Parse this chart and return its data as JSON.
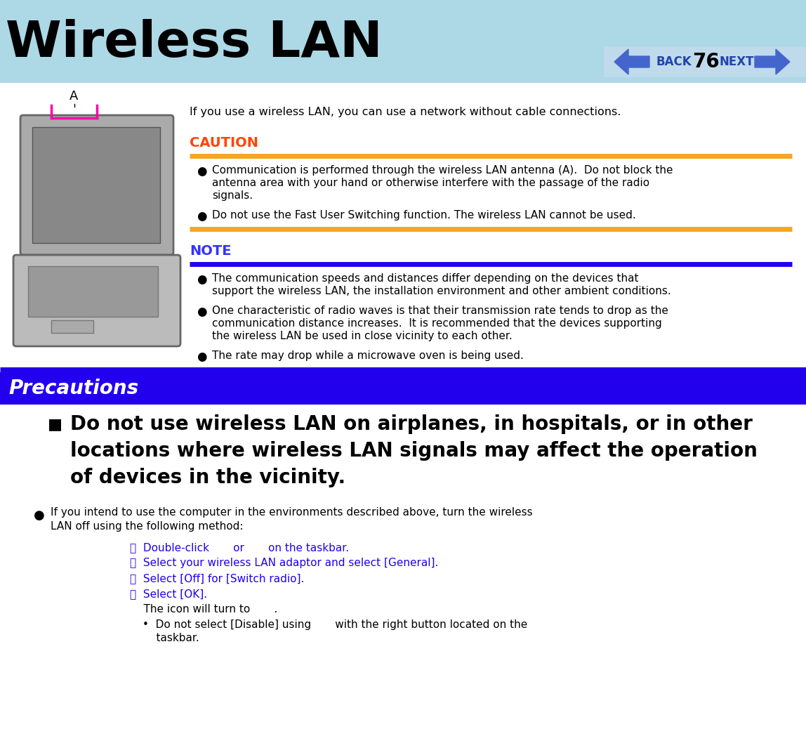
{
  "bg_color_top": "#ADD8E6",
  "bg_color_main": "#FFFFFF",
  "title": "Wireless LAN",
  "title_color": "#000000",
  "title_bg_color": "#ADD8E6",
  "page_num": "76",
  "caution_color": "#FF4500",
  "note_color": "#3333FF",
  "precautions_bg": "#2200EE",
  "precautions_text_color": "#FFFFFF",
  "orange_line_color": "#F5A623",
  "blue_line_color": "#2200EE",
  "body_text_color": "#000000",
  "intro_text": "If you use a wireless LAN, you can use a network without cable connections.",
  "caution_label": "CAUTION",
  "caution_bullets": [
    "Communication is performed through the wireless LAN antenna (A).  Do not block the\nantenna area with your hand or otherwise interfere with the passage of the radio\nsignals.",
    "Do not use the Fast User Switching function. The wireless LAN cannot be used."
  ],
  "note_label": "NOTE",
  "note_bullets": [
    "The communication speeds and distances differ depending on the devices that\nsupport the wireless LAN, the installation environment and other ambient conditions.",
    "One characteristic of radio waves is that their transmission rate tends to drop as the\ncommunication distance increases.  It is recommended that the devices supporting\nthe wireless LAN be used in close vicinity to each other.",
    "The rate may drop while a microwave oven is being used."
  ],
  "precautions_label": "Precautions",
  "precautions_main": "Do not use wireless LAN on airplanes, in hospitals, or in other\nlocations where wireless LAN signals may affect the operation\nof devices in the vicinity.",
  "precautions_sub1": "If you intend to use the computer in the environments described above, turn the wireless\nLAN off using the following method:",
  "steps": [
    "ⓐ  Double-click       or       on the taskbar.",
    "ⓑ  Select your wireless LAN adaptor and select [General].",
    "ⓒ  Select [Off] for [Switch radio].",
    "ⓓ  Select [OK].",
    "    The icon will turn to       .",
    "•  Do not select [Disable] using       with the right button located on the\n    taskbar."
  ]
}
